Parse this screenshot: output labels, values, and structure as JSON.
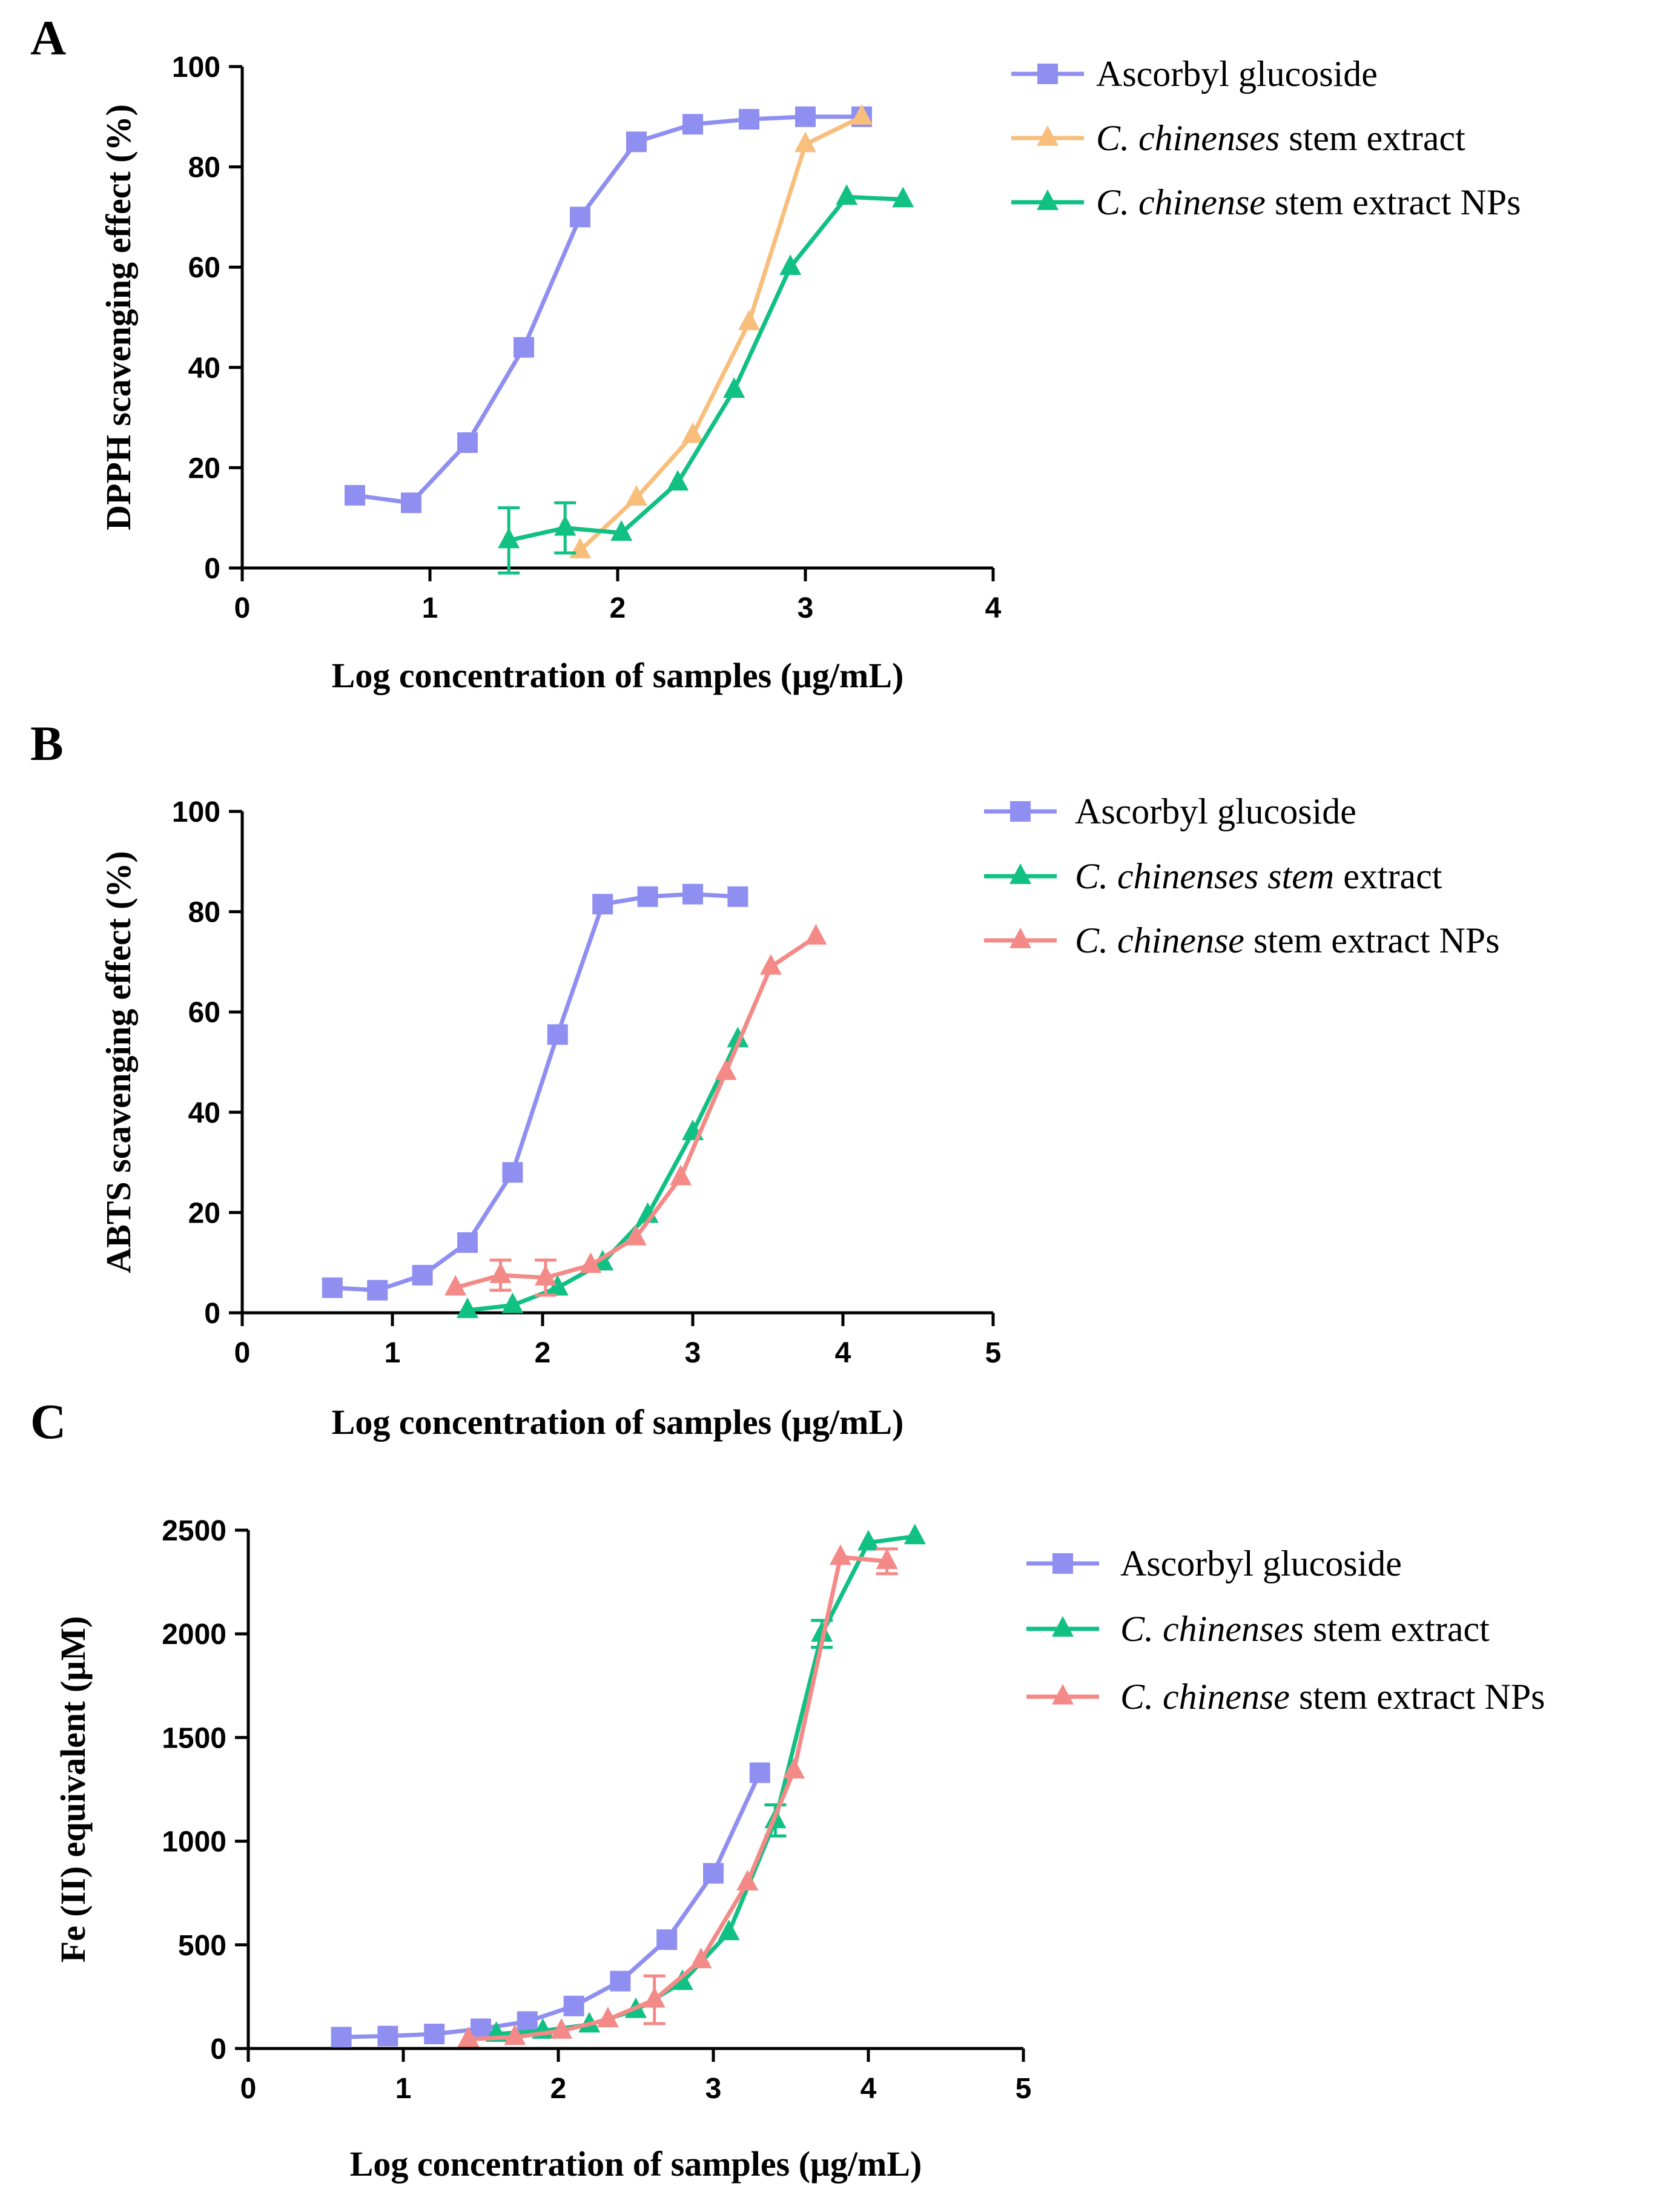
{
  "colors": {
    "ascorbyl": "#8f8ff2",
    "extract_orange": "#f8be7c",
    "extract_green": "#11c083",
    "nps_green": "#11c083",
    "nps_red": "#f38a87"
  },
  "chart_data": [
    {
      "type": "line",
      "panel_letter": "A",
      "xlabel": "Log concentration of samples  (μg/mL)",
      "ylabel": "DPPH scavenging effect (%)",
      "xlim": [
        0,
        4
      ],
      "ylim": [
        0,
        100
      ],
      "xticks": [
        "0",
        "1",
        "2",
        "3",
        "4"
      ],
      "yticks": [
        "0",
        "20",
        "40",
        "60",
        "80",
        "100"
      ],
      "series": [
        {
          "name": "Ascorbyl glucoside",
          "legend_parts": [
            {
              "text": "Ascorbyl glucoside",
              "italic": false
            }
          ],
          "marker": "square",
          "color": "#8f8ff2",
          "x": [
            0.6,
            0.9,
            1.2,
            1.5,
            1.8,
            2.1,
            2.4,
            2.7,
            3.0,
            3.3
          ],
          "y": [
            14.5,
            13,
            25,
            44,
            70,
            85,
            88.5,
            89.5,
            90,
            90
          ]
        },
        {
          "name": "C. chinenses stem extract",
          "legend_parts": [
            {
              "text": "C. chinenses",
              "italic": true
            },
            {
              "text": " stem extract",
              "italic": false
            }
          ],
          "marker": "triangle",
          "color": "#f8be7c",
          "x": [
            1.8,
            2.1,
            2.4,
            2.7,
            3.0,
            3.3
          ],
          "y": [
            3.5,
            14,
            26.5,
            49,
            84.5,
            90
          ]
        },
        {
          "name": "C. chinense stem extract NPs",
          "legend_parts": [
            {
              "text": "C. chinense",
              "italic": true
            },
            {
              "text": " stem extract NPs",
              "italic": false
            }
          ],
          "marker": "triangle",
          "color": "#11c083",
          "x": [
            1.42,
            1.72,
            2.02,
            2.32,
            2.62,
            2.92,
            3.22,
            3.52
          ],
          "y": [
            5.5,
            8,
            7,
            17,
            35.5,
            60,
            74,
            73.5
          ],
          "err": [
            6.5,
            5,
            0,
            0,
            0,
            0,
            0,
            0
          ]
        }
      ]
    },
    {
      "type": "line",
      "panel_letter": "B",
      "xlabel": "Log concentration of samples  (μg/mL)",
      "ylabel": "ABTS scavenging effect (%)",
      "xlim": [
        0,
        5
      ],
      "ylim": [
        0,
        100
      ],
      "xticks": [
        "0",
        "1",
        "2",
        "3",
        "4",
        "5"
      ],
      "yticks": [
        "0",
        "20",
        "40",
        "60",
        "80",
        "100"
      ],
      "series": [
        {
          "name": "Ascorbyl glucoside",
          "legend_parts": [
            {
              "text": "Ascorbyl glucoside",
              "italic": false
            }
          ],
          "marker": "square",
          "color": "#8f8ff2",
          "x": [
            0.6,
            0.9,
            1.2,
            1.5,
            1.8,
            2.1,
            2.4,
            2.7,
            3.0,
            3.3
          ],
          "y": [
            5,
            4.5,
            7.5,
            14,
            28,
            55.5,
            81.5,
            83,
            83.5,
            83
          ]
        },
        {
          "name": "C. chinenses stem extract",
          "legend_parts": [
            {
              "text": "C. chinenses stem",
              "italic": true
            },
            {
              "text": " extract",
              "italic": false
            }
          ],
          "marker": "triangle",
          "color": "#11c083",
          "x": [
            1.5,
            1.8,
            2.1,
            2.4,
            2.7,
            3.0,
            3.3
          ],
          "y": [
            0.5,
            1.5,
            5,
            10,
            19.5,
            36,
            54.5
          ]
        },
        {
          "name": "C. chinense stem extract NPs",
          "legend_parts": [
            {
              "text": "C. chinense",
              "italic": true
            },
            {
              "text": " stem extract NPs",
              "italic": false
            }
          ],
          "marker": "triangle",
          "color": "#f38a87",
          "x": [
            1.42,
            1.72,
            2.02,
            2.32,
            2.62,
            2.92,
            3.22,
            3.52,
            3.82
          ],
          "y": [
            5,
            7.5,
            7,
            9.5,
            15,
            27,
            48,
            69,
            75
          ],
          "err": [
            0,
            3,
            3.5,
            0,
            0,
            0,
            0,
            0,
            0
          ]
        }
      ]
    },
    {
      "type": "line",
      "panel_letter": "C",
      "xlabel": "Log concentration of samples (μg/mL)",
      "ylabel": "Fe (II) equivalent (μM)",
      "xlim": [
        0,
        5
      ],
      "ylim": [
        0,
        2500
      ],
      "xticks": [
        "0",
        "1",
        "2",
        "3",
        "4",
        "5"
      ],
      "yticks": [
        "0",
        "500",
        "1000",
        "1500",
        "2000",
        "2500"
      ],
      "series": [
        {
          "name": "Ascorbyl glucoside",
          "legend_parts": [
            {
              "text": "Ascorbyl glucoside",
              "italic": false
            }
          ],
          "marker": "square",
          "color": "#8f8ff2",
          "x": [
            0.6,
            0.9,
            1.2,
            1.5,
            1.8,
            2.1,
            2.4,
            2.7,
            3.0,
            3.3
          ],
          "y": [
            55,
            60,
            70,
            95,
            130,
            205,
            325,
            525,
            845,
            1330
          ]
        },
        {
          "name": "C. chinenses stem extract",
          "legend_parts": [
            {
              "text": "C. chinenses",
              "italic": true
            },
            {
              "text": " stem extract",
              "italic": false
            }
          ],
          "marker": "triangle",
          "color": "#11c083",
          "x": [
            1.6,
            1.9,
            2.2,
            2.5,
            2.8,
            3.1,
            3.4,
            3.7,
            4.0,
            4.3
          ],
          "y": [
            70,
            85,
            115,
            185,
            320,
            560,
            1100,
            2000,
            2440,
            2470
          ],
          "err": [
            0,
            0,
            0,
            0,
            0,
            0,
            75,
            65,
            0,
            0
          ]
        },
        {
          "name": "C. chinense stem extract NPs",
          "legend_parts": [
            {
              "text": "C. chinense",
              "italic": true
            },
            {
              "text": " stem extract NPs",
              "italic": false
            }
          ],
          "marker": "triangle",
          "color": "#f38a87",
          "x": [
            1.42,
            1.72,
            2.02,
            2.32,
            2.62,
            2.92,
            3.22,
            3.52,
            3.82,
            4.12
          ],
          "y": [
            45,
            55,
            85,
            140,
            235,
            425,
            800,
            1340,
            2370,
            2350
          ],
          "err": [
            0,
            0,
            0,
            0,
            115,
            0,
            0,
            0,
            0,
            60
          ]
        }
      ]
    }
  ]
}
